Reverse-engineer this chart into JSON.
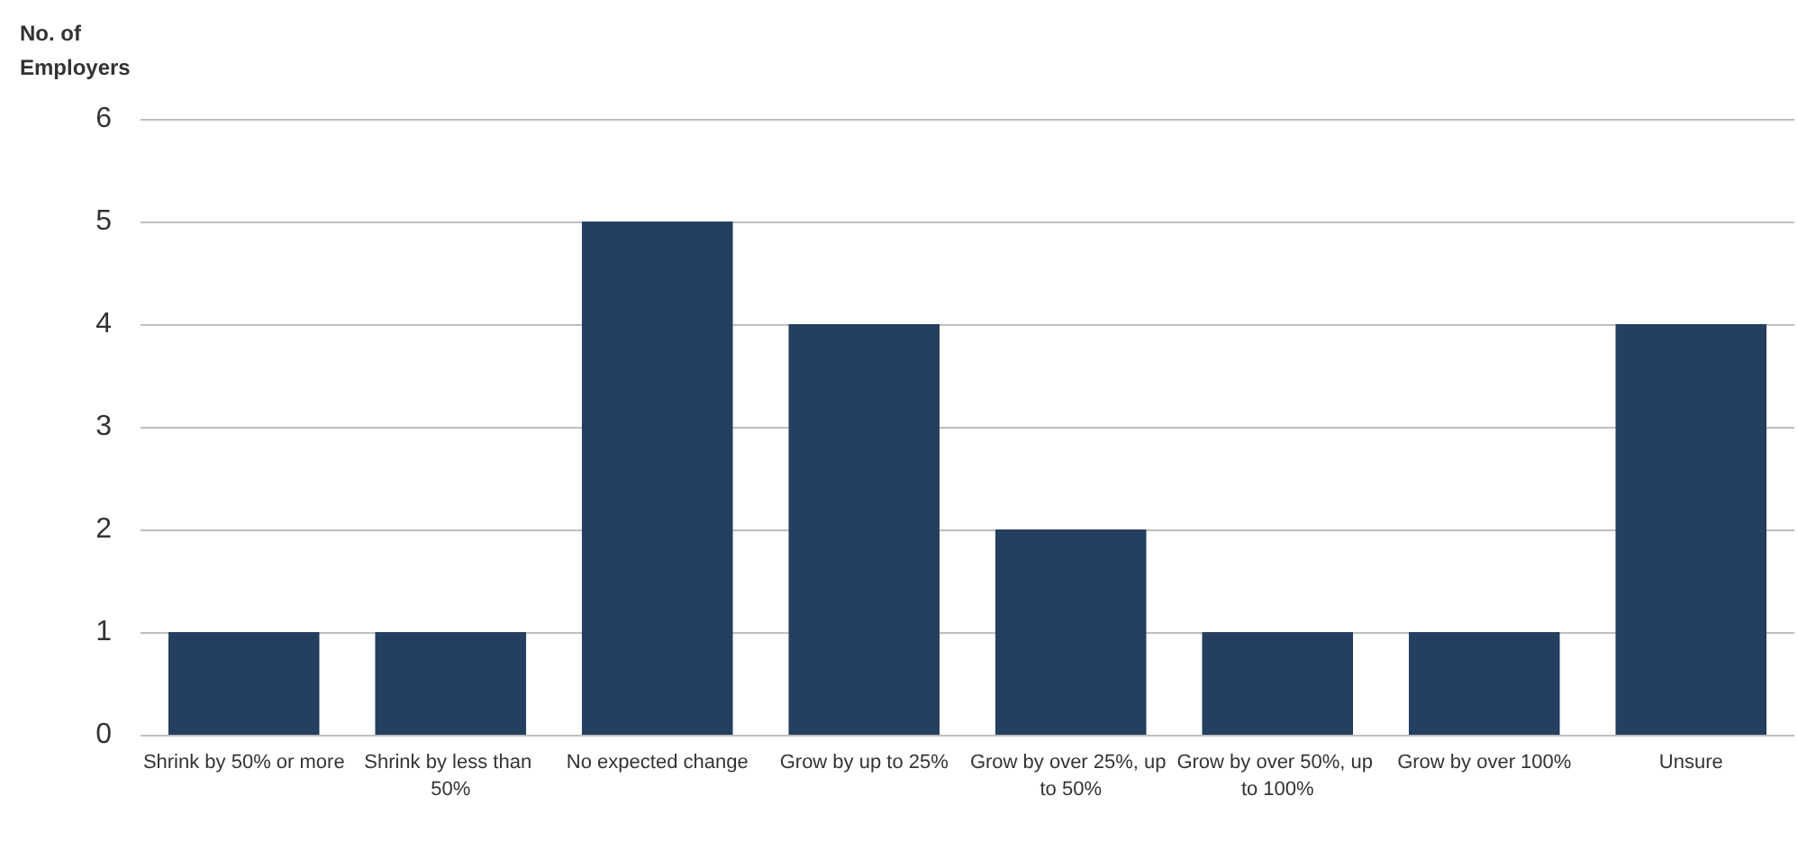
{
  "chart_data": {
    "type": "bar",
    "ylabel": "No. of Employers",
    "categories": [
      "Shrink by 50% or more",
      "Shrink by less than 50%",
      "No expected change",
      "Grow by up to 25%",
      "Grow by over 25%, up to 50%",
      "Grow by over 50%, up to 100%",
      "Grow by over 100%",
      "Unsure"
    ],
    "values": [
      1,
      1,
      5,
      4,
      2,
      1,
      1,
      4
    ],
    "color": "#243f60",
    "ylim": [
      0,
      6
    ],
    "yticks": [
      0,
      1,
      2,
      3,
      4,
      5,
      6
    ],
    "grid": "y"
  }
}
